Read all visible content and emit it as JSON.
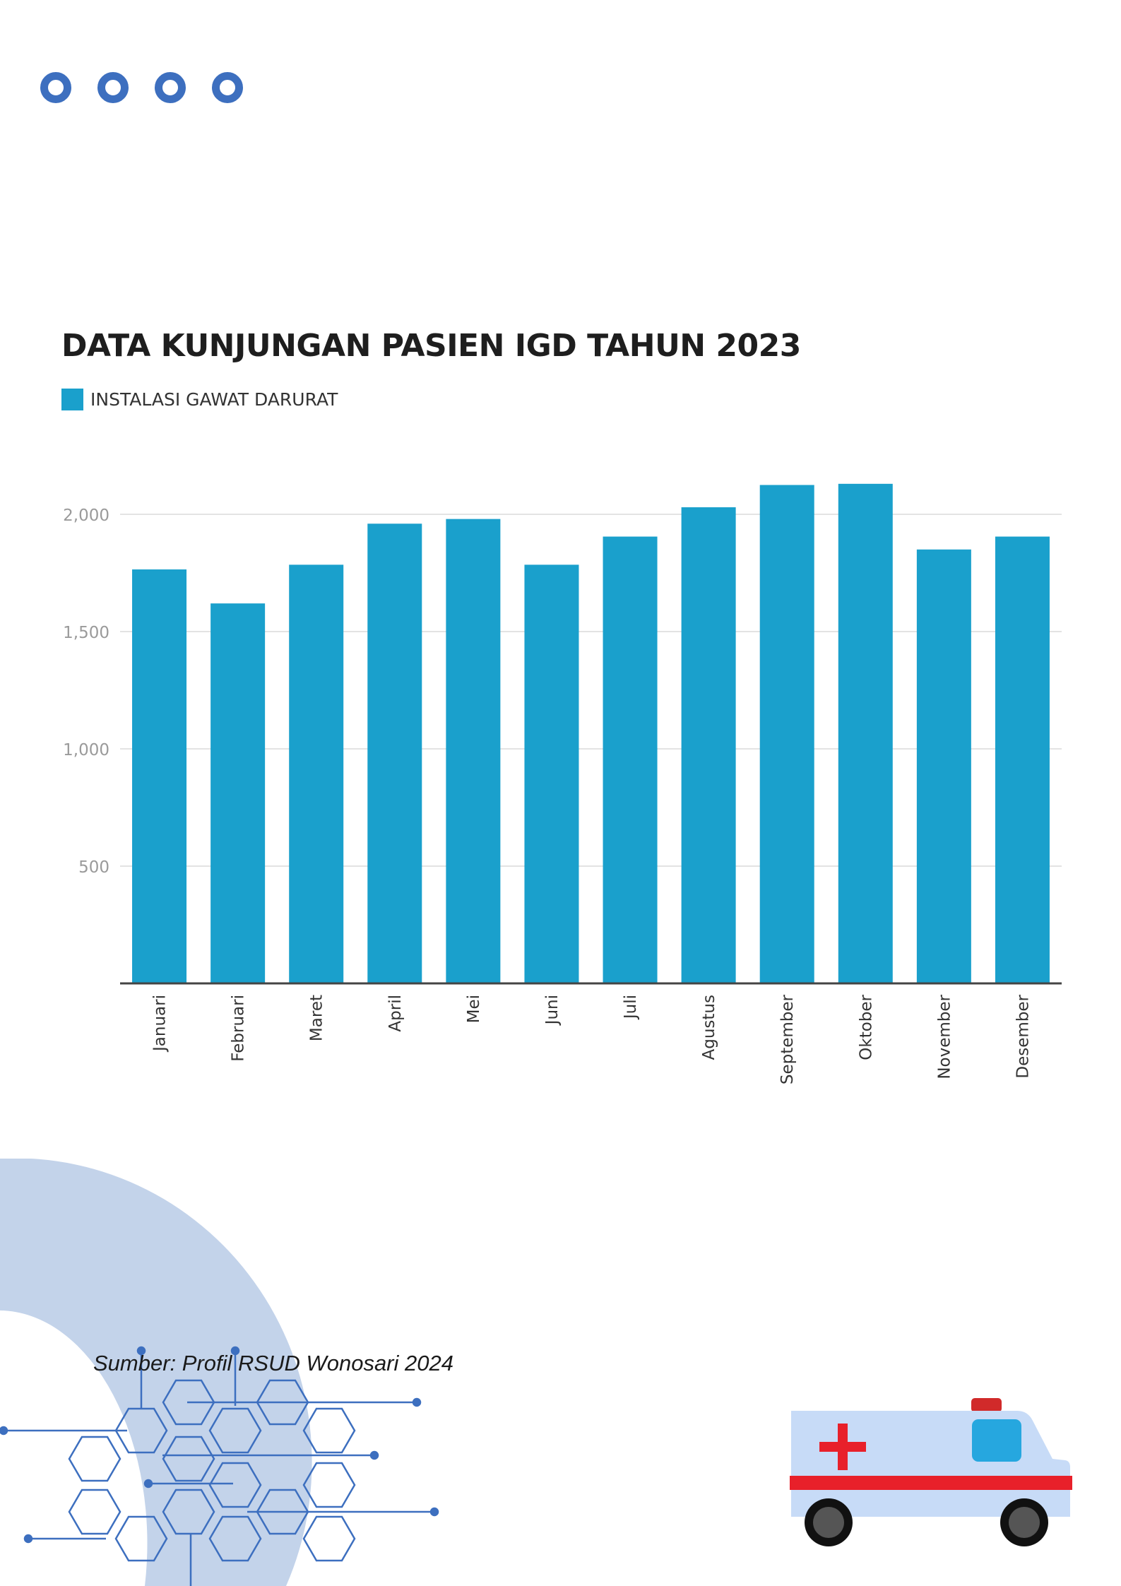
{
  "header": {
    "decor_dots_icon": "four-blue-ring-icons",
    "accent_color": "#3d6fbf"
  },
  "chart_data": {
    "type": "bar",
    "title": "DATA KUNJUNGAN PASIEN IGD TAHUN 2023",
    "legend_position": "top-left",
    "grid": true,
    "xlabel": "",
    "ylabel": "",
    "ylim": [
      0,
      2250
    ],
    "yticks": [
      500,
      1000,
      1500,
      2000
    ],
    "ytick_labels": [
      "500",
      "1,000",
      "1,500",
      "2,000"
    ],
    "categories": [
      "Januari",
      "Februari",
      "Maret",
      "April",
      "Mei",
      "Juni",
      "Juli",
      "Agustus",
      "September",
      "Oktober",
      "November",
      "Desember"
    ],
    "series": [
      {
        "name": "INSTALASI GAWAT DARURAT",
        "color": "#1aa0cc",
        "values": [
          1765,
          1620,
          1785,
          1960,
          1980,
          1785,
          1905,
          2030,
          2125,
          2130,
          1850,
          1905
        ]
      }
    ]
  },
  "footer": {
    "source": "Sumber: Profil RSUD Wonosari 2024",
    "decor_arc_color": "#c3d3ea",
    "decor_hex_icon": "hexagon-network-icon",
    "ambulance_icon": "ambulance-icon"
  }
}
